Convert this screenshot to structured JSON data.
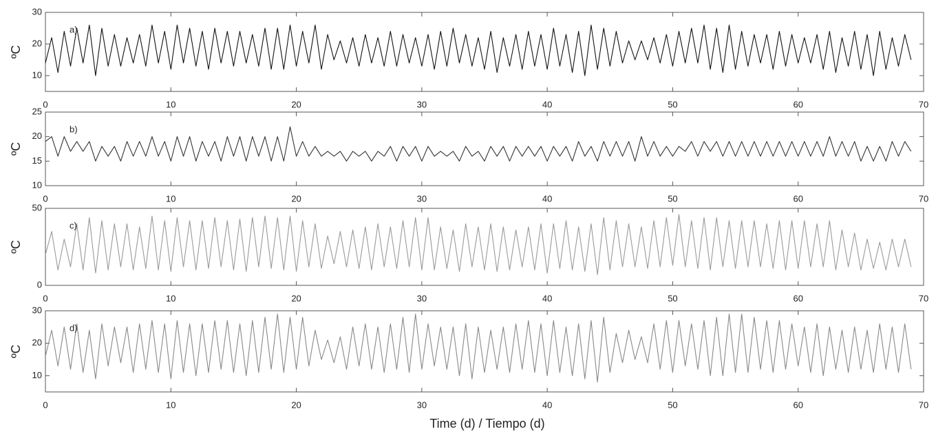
{
  "chart_data": [
    {
      "type": "line",
      "label": "a)",
      "y_label": "ºC",
      "color": "#111111",
      "xlim": [
        0,
        70
      ],
      "xticks": [
        0,
        10,
        20,
        30,
        40,
        50,
        60,
        70
      ],
      "ylim": [
        5,
        30
      ],
      "yticks": [
        10,
        20,
        30
      ],
      "x": [
        0,
        0.5,
        1,
        1.5,
        2,
        2.5,
        3,
        3.5,
        4,
        4.5,
        5,
        5.5,
        6,
        6.5,
        7,
        7.5,
        8,
        8.5,
        9,
        9.5,
        10,
        10.5,
        11,
        11.5,
        12,
        12.5,
        13,
        13.5,
        14,
        14.5,
        15,
        15.5,
        16,
        16.5,
        17,
        17.5,
        18,
        18.5,
        19,
        19.5,
        20,
        20.5,
        21,
        21.5,
        22,
        22.5,
        23,
        23.5,
        24,
        24.5,
        25,
        25.5,
        26,
        26.5,
        27,
        27.5,
        28,
        28.5,
        29,
        29.5,
        30,
        30.5,
        31,
        31.5,
        32,
        32.5,
        33,
        33.5,
        34,
        34.5,
        35,
        35.5,
        36,
        36.5,
        37,
        37.5,
        38,
        38.5,
        39,
        39.5,
        40,
        40.5,
        41,
        41.5,
        42,
        42.5,
        43,
        43.5,
        44,
        44.5,
        45,
        45.5,
        46,
        46.5,
        47,
        47.5,
        48,
        48.5,
        49,
        49.5,
        50,
        50.5,
        51,
        51.5,
        52,
        52.5,
        53,
        53.5,
        54,
        54.5,
        55,
        55.5,
        56,
        56.5,
        57,
        57.5,
        58,
        58.5,
        59,
        59.5,
        60,
        60.5,
        61,
        61.5,
        62,
        62.5,
        63,
        63.5,
        64,
        64.5,
        65,
        65.5,
        66,
        66.5,
        67,
        67.5,
        68,
        68.5,
        69
      ],
      "values": [
        14,
        22,
        11,
        24,
        13,
        25,
        14,
        26,
        10,
        25,
        13,
        23,
        13,
        22,
        14,
        23,
        13,
        26,
        14,
        24,
        12,
        26,
        14,
        25,
        13,
        24,
        12,
        25,
        14,
        24,
        13,
        24,
        14,
        23,
        13,
        25,
        12,
        25,
        12,
        26,
        13,
        24,
        14,
        26,
        12,
        23,
        15,
        21,
        14,
        22,
        13,
        23,
        14,
        22,
        13,
        24,
        13,
        23,
        14,
        22,
        13,
        23,
        12,
        24,
        13,
        25,
        14,
        23,
        13,
        22,
        12,
        24,
        11,
        22,
        13,
        23,
        12,
        24,
        13,
        23,
        12,
        25,
        13,
        23,
        11,
        24,
        10,
        26,
        12,
        25,
        13,
        24,
        14,
        21,
        15,
        21,
        15,
        22,
        14,
        23,
        13,
        24,
        14,
        25,
        14,
        26,
        12,
        25,
        11,
        26,
        12,
        24,
        13,
        23,
        14,
        23,
        12,
        24,
        13,
        23,
        14,
        22,
        14,
        23,
        12,
        24,
        11,
        22,
        13,
        24,
        12,
        23,
        10,
        24,
        12,
        22,
        13,
        23,
        15
      ]
    },
    {
      "type": "line",
      "label": "b)",
      "y_label": "ºC",
      "color": "#333333",
      "xlim": [
        0,
        70
      ],
      "xticks": [
        0,
        10,
        20,
        30,
        40,
        50,
        60,
        70
      ],
      "ylim": [
        10,
        25
      ],
      "yticks": [
        10,
        15,
        20,
        25
      ],
      "x": [
        0,
        0.5,
        1,
        1.5,
        2,
        2.5,
        3,
        3.5,
        4,
        4.5,
        5,
        5.5,
        6,
        6.5,
        7,
        7.5,
        8,
        8.5,
        9,
        9.5,
        10,
        10.5,
        11,
        11.5,
        12,
        12.5,
        13,
        13.5,
        14,
        14.5,
        15,
        15.5,
        16,
        16.5,
        17,
        17.5,
        18,
        18.5,
        19,
        19.5,
        20,
        20.5,
        21,
        21.5,
        22,
        22.5,
        23,
        23.5,
        24,
        24.5,
        25,
        25.5,
        26,
        26.5,
        27,
        27.5,
        28,
        28.5,
        29,
        29.5,
        30,
        30.5,
        31,
        31.5,
        32,
        32.5,
        33,
        33.5,
        34,
        34.5,
        35,
        35.5,
        36,
        36.5,
        37,
        37.5,
        38,
        38.5,
        39,
        39.5,
        40,
        40.5,
        41,
        41.5,
        42,
        42.5,
        43,
        43.5,
        44,
        44.5,
        45,
        45.5,
        46,
        46.5,
        47,
        47.5,
        48,
        48.5,
        49,
        49.5,
        50,
        50.5,
        51,
        51.5,
        52,
        52.5,
        53,
        53.5,
        54,
        54.5,
        55,
        55.5,
        56,
        56.5,
        57,
        57.5,
        58,
        58.5,
        59,
        59.5,
        60,
        60.5,
        61,
        61.5,
        62,
        62.5,
        63,
        63.5,
        64,
        64.5,
        65,
        65.5,
        66,
        66.5,
        67,
        67.5,
        68,
        68.5,
        69
      ],
      "values": [
        19,
        20,
        16,
        20,
        17,
        19,
        17,
        19,
        15,
        18,
        16,
        18,
        15,
        19,
        16,
        19,
        16,
        20,
        16,
        19,
        15,
        20,
        16,
        20,
        15,
        19,
        16,
        19,
        15,
        20,
        16,
        20,
        15,
        20,
        16,
        20,
        15,
        20,
        15,
        22,
        16,
        19,
        16,
        18,
        16,
        17,
        16,
        17,
        15,
        17,
        16,
        17,
        15,
        17,
        16,
        18,
        15,
        18,
        16,
        18,
        15,
        18,
        16,
        17,
        16,
        17,
        15,
        18,
        16,
        17,
        15,
        18,
        16,
        18,
        15,
        18,
        16,
        18,
        16,
        18,
        15,
        18,
        16,
        18,
        15,
        19,
        16,
        18,
        15,
        19,
        16,
        19,
        16,
        19,
        15,
        20,
        16,
        19,
        16,
        18,
        16,
        18,
        17,
        19,
        16,
        19,
        17,
        19,
        16,
        19,
        16,
        19,
        16,
        19,
        16,
        19,
        16,
        19,
        16,
        19,
        16,
        19,
        16,
        19,
        16,
        20,
        16,
        19,
        16,
        19,
        15,
        18,
        15,
        18,
        15,
        19,
        16,
        19,
        17
      ]
    },
    {
      "type": "line",
      "label": "c)",
      "y_label": "ºC",
      "color": "#999999",
      "xlim": [
        0,
        70
      ],
      "xticks": [
        0,
        10,
        20,
        30,
        40,
        50,
        60,
        70
      ],
      "ylim": [
        0,
        50
      ],
      "yticks": [
        0,
        50
      ],
      "x": [
        0,
        0.5,
        1,
        1.5,
        2,
        2.5,
        3,
        3.5,
        4,
        4.5,
        5,
        5.5,
        6,
        6.5,
        7,
        7.5,
        8,
        8.5,
        9,
        9.5,
        10,
        10.5,
        11,
        11.5,
        12,
        12.5,
        13,
        13.5,
        14,
        14.5,
        15,
        15.5,
        16,
        16.5,
        17,
        17.5,
        18,
        18.5,
        19,
        19.5,
        20,
        20.5,
        21,
        21.5,
        22,
        22.5,
        23,
        23.5,
        24,
        24.5,
        25,
        25.5,
        26,
        26.5,
        27,
        27.5,
        28,
        28.5,
        29,
        29.5,
        30,
        30.5,
        31,
        31.5,
        32,
        32.5,
        33,
        33.5,
        34,
        34.5,
        35,
        35.5,
        36,
        36.5,
        37,
        37.5,
        38,
        38.5,
        39,
        39.5,
        40,
        40.5,
        41,
        41.5,
        42,
        42.5,
        43,
        43.5,
        44,
        44.5,
        45,
        45.5,
        46,
        46.5,
        47,
        47.5,
        48,
        48.5,
        49,
        49.5,
        50,
        50.5,
        51,
        51.5,
        52,
        52.5,
        53,
        53.5,
        54,
        54.5,
        55,
        55.5,
        56,
        56.5,
        57,
        57.5,
        58,
        58.5,
        59,
        59.5,
        60,
        60.5,
        61,
        61.5,
        62,
        62.5,
        63,
        63.5,
        64,
        64.5,
        65,
        65.5,
        66,
        66.5,
        67,
        67.5,
        68,
        68.5,
        69
      ],
      "values": [
        20,
        35,
        10,
        30,
        12,
        40,
        10,
        44,
        8,
        42,
        10,
        40,
        12,
        40,
        10,
        38,
        11,
        45,
        10,
        42,
        9,
        44,
        12,
        42,
        10,
        42,
        11,
        44,
        12,
        42,
        10,
        43,
        9,
        44,
        12,
        45,
        11,
        44,
        10,
        45,
        9,
        42,
        12,
        40,
        11,
        32,
        14,
        35,
        12,
        36,
        11,
        38,
        10,
        40,
        12,
        38,
        11,
        42,
        12,
        44,
        10,
        44,
        10,
        38,
        11,
        36,
        9,
        40,
        12,
        38,
        10,
        40,
        9,
        38,
        10,
        36,
        12,
        38,
        10,
        40,
        8,
        40,
        11,
        42,
        10,
        38,
        9,
        40,
        7,
        44,
        10,
        42,
        12,
        40,
        12,
        38,
        11,
        42,
        12,
        44,
        13,
        46,
        12,
        42,
        11,
        44,
        10,
        44,
        12,
        42,
        11,
        42,
        12,
        42,
        12,
        40,
        11,
        42,
        10,
        42,
        11,
        42,
        12,
        40,
        12,
        42,
        10,
        36,
        12,
        34,
        10,
        30,
        11,
        28,
        10,
        30,
        12,
        30,
        12
      ]
    },
    {
      "type": "line",
      "label": "d)",
      "y_label": "ºC",
      "x_label": "Time (d) / Tiempo (d)",
      "color": "#888888",
      "xlim": [
        0,
        70
      ],
      "xticks": [
        0,
        10,
        20,
        30,
        40,
        50,
        60,
        70
      ],
      "ylim": [
        5,
        30
      ],
      "yticks": [
        10,
        20,
        30
      ],
      "x": [
        0,
        0.5,
        1,
        1.5,
        2,
        2.5,
        3,
        3.5,
        4,
        4.5,
        5,
        5.5,
        6,
        6.5,
        7,
        7.5,
        8,
        8.5,
        9,
        9.5,
        10,
        10.5,
        11,
        11.5,
        12,
        12.5,
        13,
        13.5,
        14,
        14.5,
        15,
        15.5,
        16,
        16.5,
        17,
        17.5,
        18,
        18.5,
        19,
        19.5,
        20,
        20.5,
        21,
        21.5,
        22,
        22.5,
        23,
        23.5,
        24,
        24.5,
        25,
        25.5,
        26,
        26.5,
        27,
        27.5,
        28,
        28.5,
        29,
        29.5,
        30,
        30.5,
        31,
        31.5,
        32,
        32.5,
        33,
        33.5,
        34,
        34.5,
        35,
        35.5,
        36,
        36.5,
        37,
        37.5,
        38,
        38.5,
        39,
        39.5,
        40,
        40.5,
        41,
        41.5,
        42,
        42.5,
        43,
        43.5,
        44,
        44.5,
        45,
        45.5,
        46,
        46.5,
        47,
        47.5,
        48,
        48.5,
        49,
        49.5,
        50,
        50.5,
        51,
        51.5,
        52,
        52.5,
        53,
        53.5,
        54,
        54.5,
        55,
        55.5,
        56,
        56.5,
        57,
        57.5,
        58,
        58.5,
        59,
        59.5,
        60,
        60.5,
        61,
        61.5,
        62,
        62.5,
        63,
        63.5,
        64,
        64.5,
        65,
        65.5,
        66,
        66.5,
        67,
        67.5,
        68,
        68.5,
        69
      ],
      "values": [
        16,
        24,
        13,
        25,
        12,
        26,
        11,
        24,
        9,
        26,
        13,
        25,
        14,
        25,
        11,
        26,
        12,
        27,
        11,
        26,
        9,
        27,
        11,
        26,
        10,
        26,
        11,
        27,
        12,
        27,
        11,
        26,
        10,
        27,
        11,
        28,
        12,
        29,
        11,
        28,
        12,
        28,
        13,
        24,
        15,
        21,
        14,
        22,
        12,
        25,
        13,
        26,
        12,
        25,
        11,
        26,
        12,
        28,
        11,
        29,
        12,
        26,
        13,
        25,
        12,
        25,
        10,
        26,
        9,
        25,
        11,
        24,
        12,
        25,
        11,
        26,
        12,
        27,
        11,
        26,
        10,
        27,
        11,
        25,
        10,
        26,
        9,
        27,
        8,
        28,
        11,
        23,
        14,
        24,
        15,
        22,
        14,
        26,
        12,
        27,
        11,
        27,
        13,
        26,
        12,
        27,
        10,
        28,
        10,
        29,
        11,
        29,
        11,
        28,
        12,
        27,
        11,
        27,
        12,
        26,
        13,
        25,
        11,
        26,
        10,
        25,
        12,
        24,
        11,
        25,
        12,
        24,
        11,
        26,
        12,
        25,
        11,
        26,
        12
      ]
    }
  ]
}
